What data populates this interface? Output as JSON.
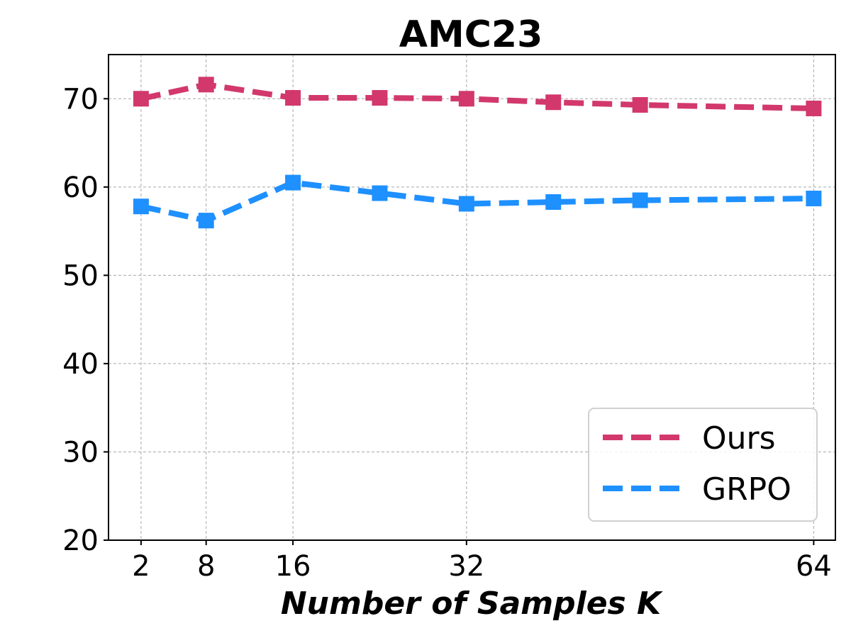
{
  "chart_data": {
    "type": "line",
    "title": "AMC23",
    "xlabel": "Number of Samples K",
    "ylabel": "",
    "xlim": [
      -1,
      66
    ],
    "ylim": [
      20,
      75
    ],
    "xticks": [
      2,
      8,
      16,
      32,
      64
    ],
    "yticks": [
      20,
      30,
      40,
      50,
      60,
      70
    ],
    "grid": true,
    "legend_position": "lower-right",
    "series": [
      {
        "name": "Ours",
        "color": "#d2386c",
        "line_style": "dashed",
        "marker": "square",
        "x": [
          2,
          8,
          16,
          24,
          32,
          40,
          48,
          64
        ],
        "y": [
          70.0,
          71.6,
          70.1,
          70.1,
          70.0,
          69.6,
          69.3,
          68.9
        ]
      },
      {
        "name": "GRPO",
        "color": "#1e90ff",
        "line_style": "dashed",
        "marker": "square",
        "x": [
          2,
          8,
          16,
          24,
          32,
          40,
          48,
          64
        ],
        "y": [
          57.8,
          56.2,
          60.5,
          59.3,
          58.1,
          58.3,
          58.5,
          58.7
        ]
      }
    ]
  }
}
